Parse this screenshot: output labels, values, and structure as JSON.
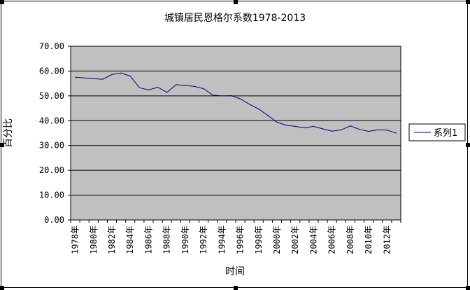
{
  "chart_data": {
    "type": "line",
    "title": "城镇居民恩格尔系数1978-2013",
    "xlabel": "时间",
    "ylabel": "百分比",
    "ylim": [
      0,
      70
    ],
    "ytick_labels": [
      "0.00",
      "10.00",
      "20.00",
      "30.00",
      "40.00",
      "50.00",
      "60.00",
      "70.00"
    ],
    "grid": "horizontal",
    "legend_position": "right",
    "plot_background": "#c0c0c0",
    "categories": [
      "1978年",
      "1979年",
      "1980年",
      "1981年",
      "1982年",
      "1983年",
      "1984年",
      "1985年",
      "1986年",
      "1987年",
      "1988年",
      "1989年",
      "1990年",
      "1991年",
      "1992年",
      "1993年",
      "1994年",
      "1995年",
      "1996年",
      "1997年",
      "1998年",
      "1999年",
      "2000年",
      "2001年",
      "2002年",
      "2003年",
      "2004年",
      "2005年",
      "2006年",
      "2007年",
      "2008年",
      "2009年",
      "2010年",
      "2011年",
      "2012年",
      "2013年"
    ],
    "xtick_labels": [
      "1978年",
      "1980年",
      "1982年",
      "1984年",
      "1986年",
      "1988年",
      "1990年",
      "1992年",
      "1994年",
      "1996年",
      "1998年",
      "2000年",
      "2002年",
      "2004年",
      "2006年",
      "2008年",
      "2010年",
      "2012年"
    ],
    "series": [
      {
        "name": "系列1",
        "color": "#000080",
        "values": [
          57.5,
          57.2,
          56.9,
          56.7,
          58.6,
          59.2,
          58.0,
          53.3,
          52.4,
          53.5,
          51.4,
          54.5,
          54.2,
          53.8,
          52.9,
          50.3,
          50.0,
          50.1,
          48.8,
          46.6,
          44.7,
          42.1,
          39.4,
          38.2,
          37.7,
          37.1,
          37.7,
          36.7,
          35.8,
          36.3,
          37.9,
          36.5,
          35.7,
          36.3,
          36.2,
          35.0
        ]
      }
    ]
  }
}
